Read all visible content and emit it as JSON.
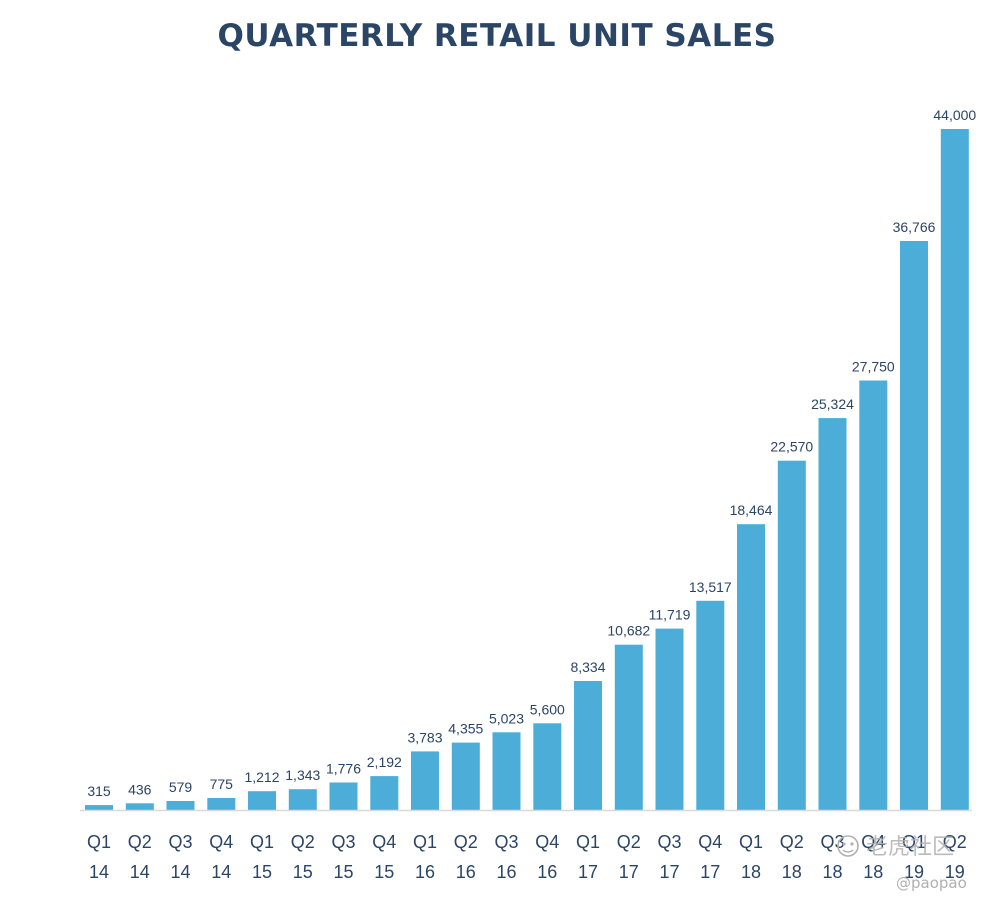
{
  "colors": {
    "bar": "#4badd8",
    "text": "#2b4566",
    "axis": "#d9d9d9",
    "watermark": "#b0b0b0"
  },
  "watermark": {
    "site_text": "老虎社区",
    "handle": "@paopao",
    "icon": "tiger-icon"
  },
  "chart_data": {
    "type": "bar",
    "title": "QUARTERLY RETAIL UNIT SALES",
    "xlabel": "",
    "ylabel": "",
    "ylim": [
      0,
      44000
    ],
    "grid": false,
    "categories": [
      [
        "Q1",
        "14"
      ],
      [
        "Q2",
        "14"
      ],
      [
        "Q3",
        "14"
      ],
      [
        "Q4",
        "14"
      ],
      [
        "Q1",
        "15"
      ],
      [
        "Q2",
        "15"
      ],
      [
        "Q3",
        "15"
      ],
      [
        "Q4",
        "15"
      ],
      [
        "Q1",
        "16"
      ],
      [
        "Q2",
        "16"
      ],
      [
        "Q3",
        "16"
      ],
      [
        "Q4",
        "16"
      ],
      [
        "Q1",
        "17"
      ],
      [
        "Q2",
        "17"
      ],
      [
        "Q3",
        "17"
      ],
      [
        "Q4",
        "17"
      ],
      [
        "Q1",
        "18"
      ],
      [
        "Q2",
        "18"
      ],
      [
        "Q3",
        "18"
      ],
      [
        "Q4",
        "18"
      ],
      [
        "Q1",
        "19"
      ],
      [
        "Q2",
        "19"
      ]
    ],
    "values": [
      315,
      436,
      579,
      775,
      1212,
      1343,
      1776,
      2192,
      3783,
      4355,
      5023,
      5600,
      8334,
      10682,
      11719,
      13517,
      18464,
      22570,
      25324,
      27750,
      36766,
      44000
    ],
    "data_labels": [
      "315",
      "436",
      "579",
      "775",
      "1,212",
      "1,343",
      "1,776",
      "2,192",
      "3,783",
      "4,355",
      "5,023",
      "5,600",
      "8,334",
      "10,682",
      "11,719",
      "13,517",
      "18,464",
      "22,570",
      "25,324",
      "27,750",
      "36,766",
      "44,000"
    ]
  }
}
